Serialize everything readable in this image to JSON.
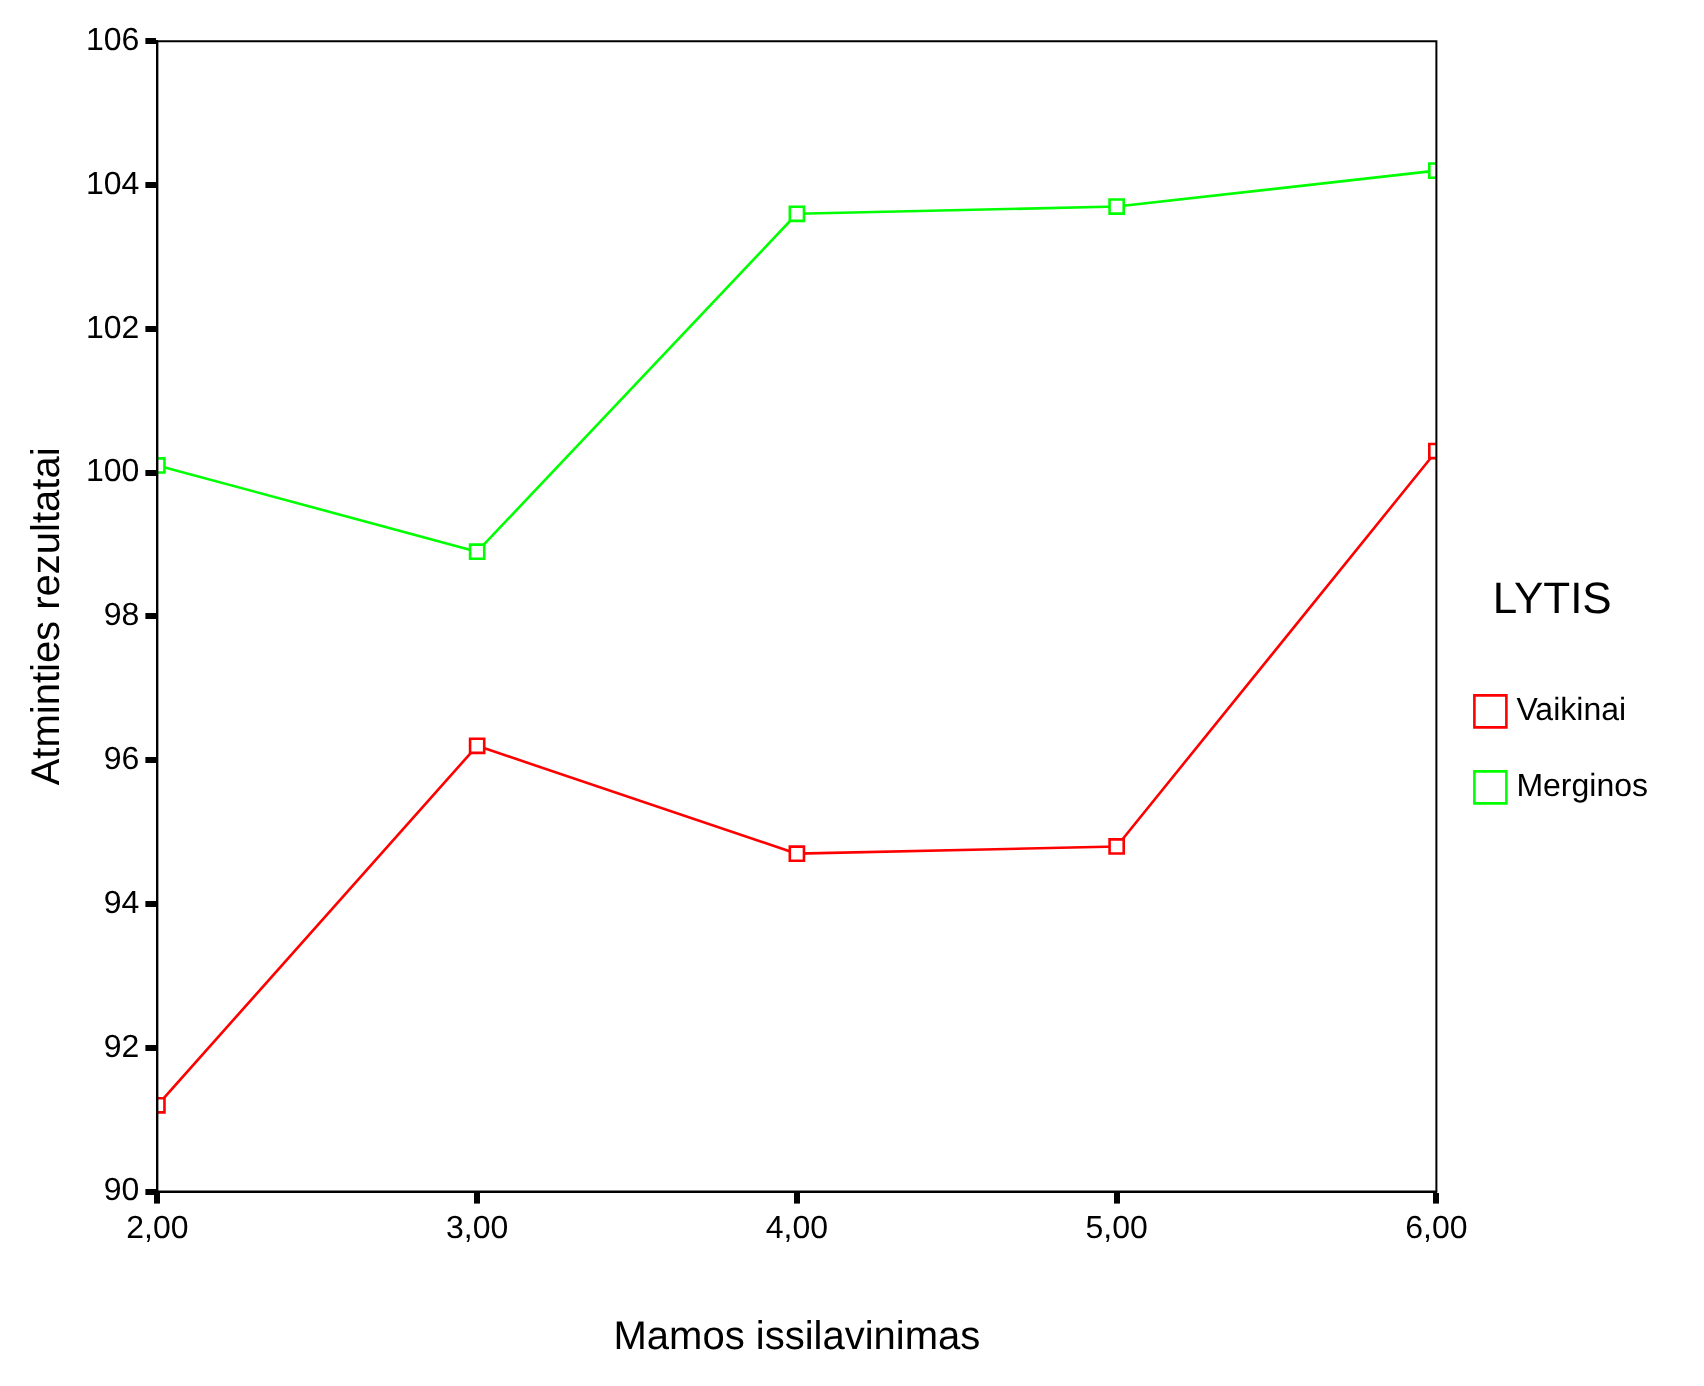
{
  "chart_data": {
    "type": "line",
    "xlabel": "Mamos issilavinimas",
    "ylabel": "Atminties rezultatai",
    "legend_title": "LYTIS",
    "legend": "right",
    "marker": "square",
    "grid": false,
    "x": [
      2,
      3,
      4,
      5,
      6
    ],
    "xlim": [
      2,
      6
    ],
    "xticks": [
      {
        "value": 2,
        "label": "2,00"
      },
      {
        "value": 3,
        "label": "3,00"
      },
      {
        "value": 4,
        "label": "4,00"
      },
      {
        "value": 5,
        "label": "5,00"
      },
      {
        "value": 6,
        "label": "6,00"
      }
    ],
    "ylim": [
      90,
      106
    ],
    "yticks": [
      90,
      92,
      94,
      96,
      98,
      100,
      102,
      104,
      106
    ],
    "series": [
      {
        "name": "Vaikinai",
        "color": "#ff0000",
        "values": [
          91.2,
          96.2,
          94.7,
          94.8,
          100.3
        ]
      },
      {
        "name": "Merginos",
        "color": "#00ff00",
        "values": [
          100.1,
          98.9,
          103.6,
          103.7,
          104.2
        ]
      }
    ]
  }
}
